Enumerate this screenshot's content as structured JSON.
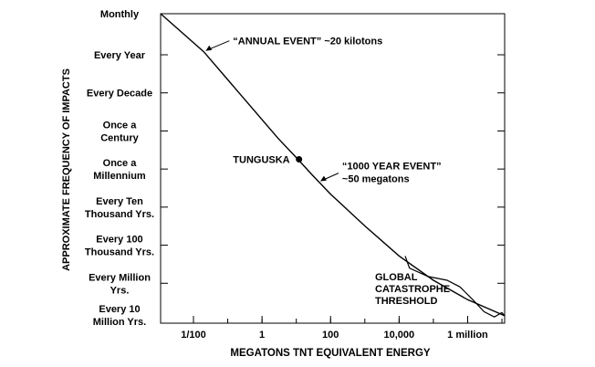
{
  "chart_data": {
    "type": "line",
    "title": "",
    "xlabel": "MEGATONS TNT EQUIVALENT ENERGY",
    "ylabel": "APPROXIMATE FREQUENCY OF IMPACTS",
    "x_scale": "log",
    "x_ticks": [
      {
        "value": 0.01,
        "label": "1/100"
      },
      {
        "value": 1,
        "label": "1"
      },
      {
        "value": 100,
        "label": "100"
      },
      {
        "value": 10000,
        "label": "10,000"
      },
      {
        "value": 1000000,
        "label": "1 million"
      }
    ],
    "y_scale": "log",
    "y_unit": "impacts per year",
    "y_ticks": [
      {
        "value": 12,
        "label": "Monthly"
      },
      {
        "value": 1,
        "label": "Every Year"
      },
      {
        "value": 0.1,
        "label": "Every Decade"
      },
      {
        "value": 0.01,
        "label": "Once a Century"
      },
      {
        "value": 0.001,
        "label": "Once a Millennium"
      },
      {
        "value": 0.0001,
        "label": "Every Ten Thousand Yrs."
      },
      {
        "value": 1e-05,
        "label": "Every 100 Thousand Yrs."
      },
      {
        "value": 1e-06,
        "label": "Every Million Yrs."
      },
      {
        "value": 1e-07,
        "label": "Every 10 Million Yrs."
      }
    ],
    "series": [
      {
        "x": [
          0.0011,
          0.02,
          0.3,
          3,
          10,
          30,
          100,
          1000,
          10000,
          100000,
          1000000,
          12000000
        ],
        "y": [
          12,
          1.2,
          0.07,
          0.0063,
          0.002,
          0.00068,
          0.00022,
          3.2e-05,
          5.2e-06,
          1.2e-06,
          3.7e-07,
          1.4e-07
        ]
      }
    ],
    "points": [
      {
        "name": "TUNGUSKA",
        "x": 12,
        "y": 0.0018
      }
    ],
    "region": {
      "label": "GLOBAL CATASTROPHE THRESHOLD",
      "x": [
        15000,
        20000,
        70000,
        250000,
        600000,
        1500000,
        3000000,
        6000000,
        10000000,
        12000000
      ],
      "y": [
        5.2e-06,
        2.5e-06,
        1.5e-06,
        1.2e-06,
        8e-07,
        3.5e-07,
        1.8e-07,
        1.3e-07,
        1.7e-07,
        1.4e-07
      ]
    },
    "annotations": [
      {
        "lines": [
          "“ANNUAL EVENT” ~20 kilotons"
        ],
        "x": 0.02,
        "y": 1.2
      },
      {
        "lines": [
          "“1000 YEAR EVENT”",
          "~50 megatons"
        ],
        "x": 50,
        "y": 0.00045
      }
    ],
    "xlim": [
      0.0011,
      12000000
    ],
    "ylim": [
      5e-08,
      12
    ],
    "grid": false,
    "legend": "none"
  }
}
